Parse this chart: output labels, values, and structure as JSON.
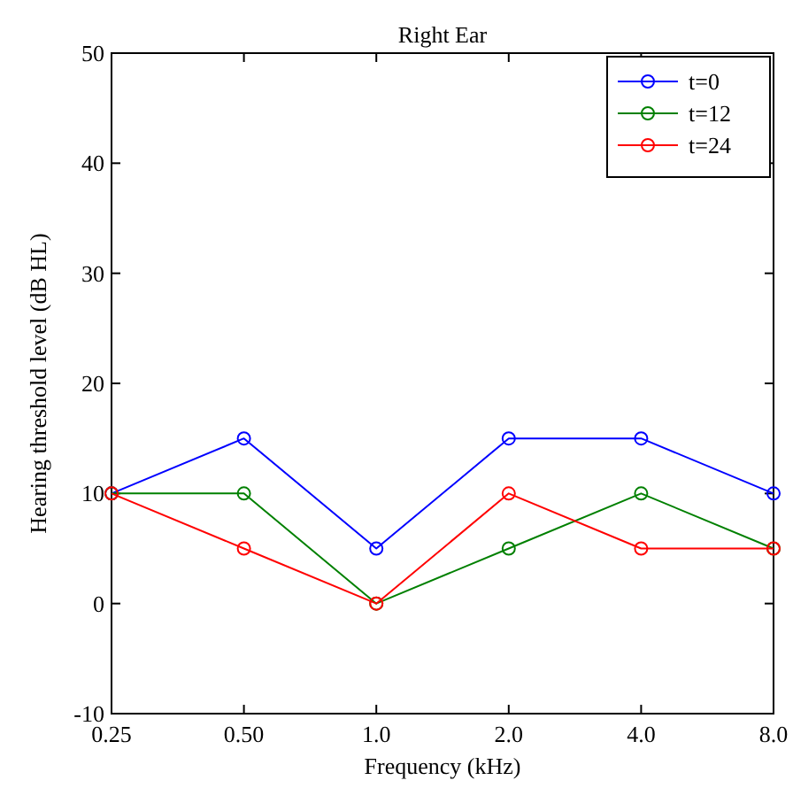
{
  "chart_data": {
    "type": "line",
    "title": "Right Ear",
    "xlabel": "Frequency (kHz)",
    "ylabel": "Hearing threshold level (dB HL)",
    "x": [
      0.25,
      0.5,
      1,
      2,
      4,
      8
    ],
    "series": [
      {
        "name": "t=0",
        "color": "#0000ff",
        "values": [
          10,
          15,
          5,
          15,
          15,
          10
        ]
      },
      {
        "name": "t=12",
        "color": "#008000",
        "values": [
          10,
          10,
          0,
          5,
          10,
          5
        ]
      },
      {
        "name": "t=24",
        "color": "#ff0000",
        "values": [
          10,
          5,
          0,
          10,
          5,
          5
        ]
      }
    ],
    "log": "x",
    "xlim": [
      0.25,
      8
    ],
    "xticks": [
      {
        "value": 0.25,
        "label": "0.25"
      },
      {
        "value": 0.5,
        "label": "0.50"
      },
      {
        "value": 1,
        "label": "1.0"
      },
      {
        "value": 2,
        "label": "2.0"
      },
      {
        "value": 4,
        "label": "4.0"
      },
      {
        "value": 8,
        "label": "8.0"
      }
    ],
    "ylim": [
      -10,
      50
    ],
    "yticks": [
      -10,
      0,
      10,
      20,
      30,
      40,
      50
    ],
    "grid": false,
    "legend": "top right",
    "marker": "circle",
    "line_style": "solid"
  }
}
